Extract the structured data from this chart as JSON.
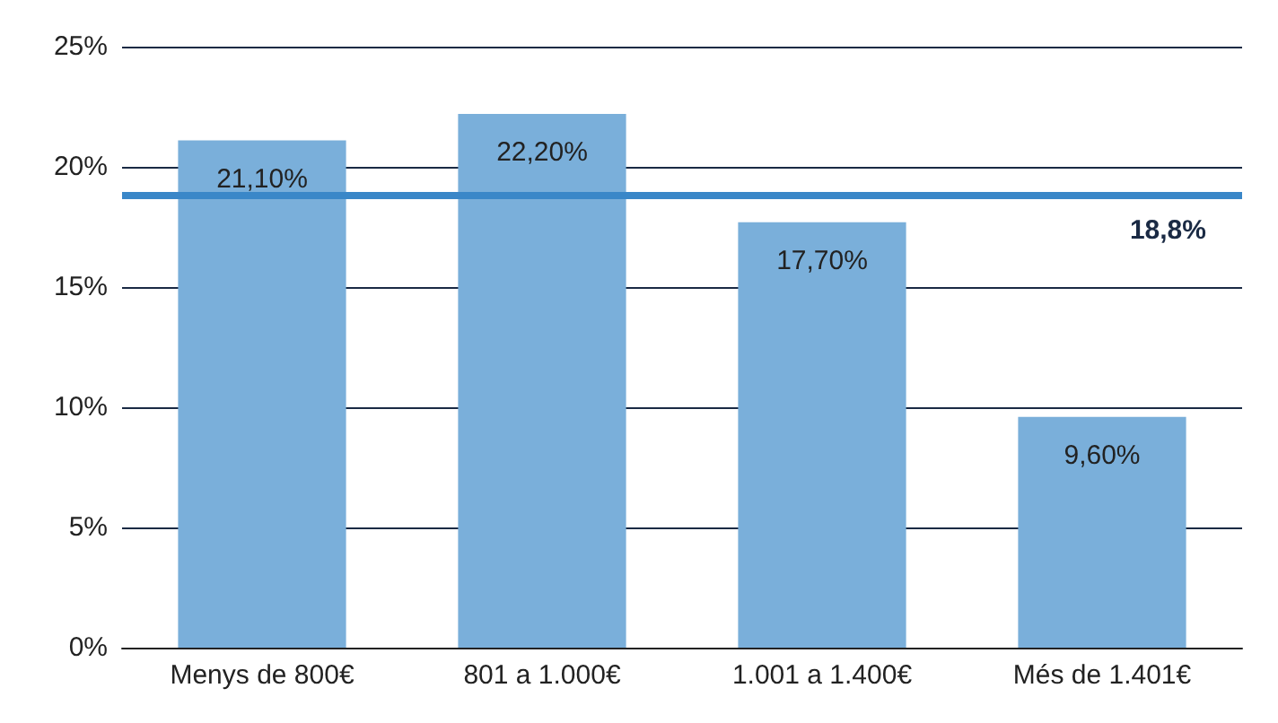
{
  "chart_data": {
    "type": "bar",
    "categories": [
      "Menys de 800€",
      "801 a 1.000€",
      "1.001 a 1.400€",
      "Més de 1.401€"
    ],
    "values": [
      21.1,
      22.2,
      17.7,
      9.6
    ],
    "value_labels": [
      "21,10%",
      "22,20%",
      "17,70%",
      "9,60%"
    ],
    "color": "#7aafda",
    "ylim": [
      0,
      25
    ],
    "yticks": [
      {
        "value": 0,
        "label": "0%"
      },
      {
        "value": 5,
        "label": "5%"
      },
      {
        "value": 10,
        "label": "10%"
      },
      {
        "value": 15,
        "label": "15%"
      },
      {
        "value": 20,
        "label": "20%"
      },
      {
        "value": 25,
        "label": "25%"
      }
    ],
    "grid": "y",
    "ref_lines": [
      {
        "axis": "y",
        "value": 18.8,
        "label": "18,8%",
        "color": "#3a87c8"
      }
    ]
  }
}
